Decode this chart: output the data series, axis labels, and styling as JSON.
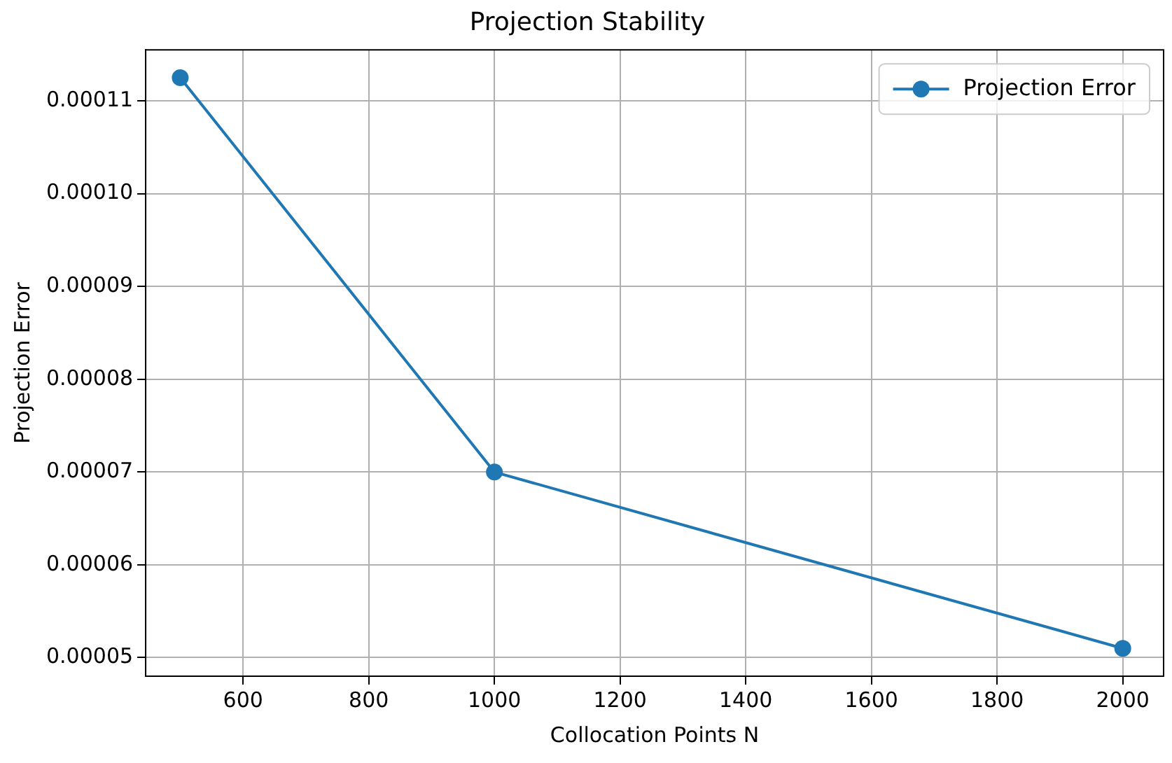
{
  "chart_data": {
    "type": "line",
    "title": "Projection Stability",
    "xlabel": "Collocation Points N",
    "ylabel": "Projection Error",
    "x": [
      500,
      1000,
      2000
    ],
    "series": [
      {
        "name": "Projection Error",
        "color": "#1f77b4",
        "values": [
          0.0001125,
          7e-05,
          5.1e-05
        ]
      }
    ],
    "xlim": [
      445,
      2065
    ],
    "xticks": [
      600,
      800,
      1000,
      1200,
      1400,
      1600,
      1800,
      2000
    ],
    "ylim": [
      4.8e-05,
      0.0001155
    ],
    "yticks": [
      {
        "value": 5e-05,
        "label": "0.00005"
      },
      {
        "value": 6e-05,
        "label": "0.00006"
      },
      {
        "value": 7e-05,
        "label": "0.00007"
      },
      {
        "value": 8e-05,
        "label": "0.00008"
      },
      {
        "value": 9e-05,
        "label": "0.00009"
      },
      {
        "value": 0.0001,
        "label": "0.00010"
      },
      0.00011
    ],
    "grid": true,
    "legend": "top right",
    "marker": "circle",
    "line_style": "solid"
  }
}
